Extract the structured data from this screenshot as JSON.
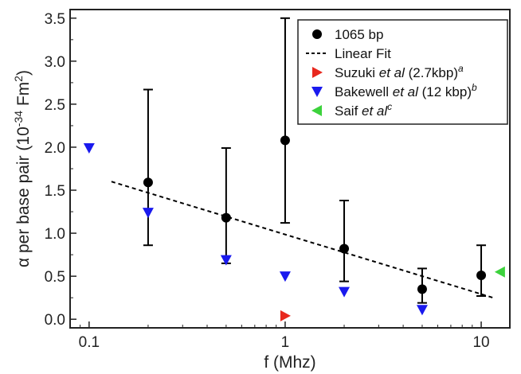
{
  "chart_data": {
    "type": "scatter",
    "xscale": "log",
    "xlim": [
      0.08,
      14
    ],
    "ylim": [
      -0.1,
      3.6
    ],
    "xlabel": "f (Mhz)",
    "ylabel_parts": [
      "α per base pair (10",
      "-34",
      " Fm",
      "2",
      ")"
    ],
    "xticks": [
      {
        "value": 0.1,
        "label": "0.1"
      },
      {
        "value": 1,
        "label": "1"
      },
      {
        "value": 10,
        "label": "10"
      }
    ],
    "yticks": [
      {
        "value": 0.0,
        "label": "0.0"
      },
      {
        "value": 0.5,
        "label": "0.5"
      },
      {
        "value": 1.0,
        "label": "1.0"
      },
      {
        "value": 1.5,
        "label": "1.5"
      },
      {
        "value": 2.0,
        "label": "2.0"
      },
      {
        "value": 2.5,
        "label": "2.5"
      },
      {
        "value": 3.0,
        "label": "3.0"
      },
      {
        "value": 3.5,
        "label": "3.5"
      }
    ],
    "grid": false,
    "legend_position": "top-right",
    "series": [
      {
        "name": "1065 bp",
        "legend_parts": [
          {
            "t": "1065 bp",
            "s": "n"
          }
        ],
        "marker": "circle",
        "color": "#000000",
        "points": [
          {
            "x": 0.2,
            "y": 1.59,
            "lo": 0.86,
            "hi": 2.67
          },
          {
            "x": 0.5,
            "y": 1.18,
            "lo": 0.65,
            "hi": 1.99
          },
          {
            "x": 1.0,
            "y": 2.08,
            "lo": 1.12,
            "hi": 3.5
          },
          {
            "x": 2.0,
            "y": 0.82,
            "lo": 0.44,
            "hi": 1.38
          },
          {
            "x": 5.0,
            "y": 0.35,
            "lo": 0.19,
            "hi": 0.59
          },
          {
            "x": 10.0,
            "y": 0.51,
            "lo": 0.27,
            "hi": 0.86
          }
        ]
      },
      {
        "name": "Linear Fit",
        "legend_parts": [
          {
            "t": "Linear Fit",
            "s": "n"
          }
        ],
        "marker": "dashed-line",
        "color": "#000000",
        "points": [
          {
            "x": 0.13,
            "y": 1.6
          },
          {
            "x": 11.5,
            "y": 0.25
          }
        ]
      },
      {
        "name": "Suzuki et al (2.7kbp)a",
        "legend_parts": [
          {
            "t": "Suzuki ",
            "s": "n"
          },
          {
            "t": "et al",
            "s": "i"
          },
          {
            "t": " (2.7kbp)",
            "s": "n"
          },
          {
            "t": "a",
            "s": "sup"
          }
        ],
        "marker": "triangle-right",
        "color": "#e8281e",
        "points": [
          {
            "x": 1.0,
            "y": 0.04
          }
        ]
      },
      {
        "name": "Bakewell et al (12 kbp)b",
        "legend_parts": [
          {
            "t": "Bakewell ",
            "s": "n"
          },
          {
            "t": "et al",
            "s": "i"
          },
          {
            "t": " (12 kbp)",
            "s": "n"
          },
          {
            "t": "b",
            "s": "sup"
          }
        ],
        "marker": "triangle-down",
        "color": "#1a1aee",
        "points": [
          {
            "x": 0.1,
            "y": 1.99
          },
          {
            "x": 0.2,
            "y": 1.24
          },
          {
            "x": 0.5,
            "y": 0.69
          },
          {
            "x": 1.0,
            "y": 0.5
          },
          {
            "x": 2.0,
            "y": 0.32
          },
          {
            "x": 5.0,
            "y": 0.11
          }
        ]
      },
      {
        "name": "Saif et alc",
        "legend_parts": [
          {
            "t": "Saif ",
            "s": "n"
          },
          {
            "t": "et al",
            "s": "i"
          },
          {
            "t": "c",
            "s": "sup"
          }
        ],
        "marker": "triangle-left",
        "color": "#3cd23c",
        "points": [
          {
            "x": 12.5,
            "y": 0.55
          }
        ]
      }
    ]
  }
}
